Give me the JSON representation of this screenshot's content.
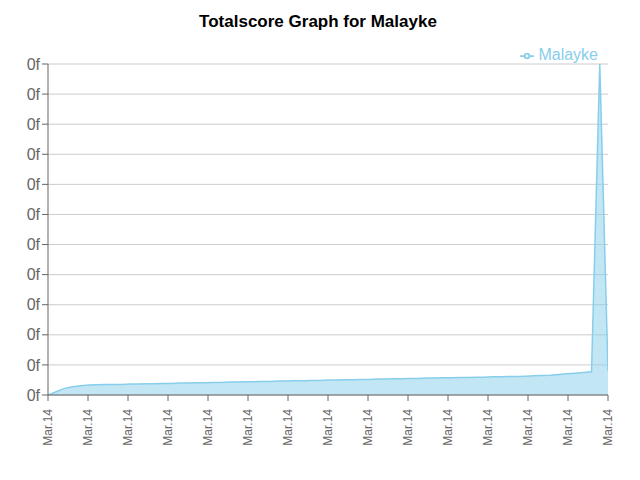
{
  "chart_data": {
    "type": "area",
    "title": "Totalscore Graph for Malayke",
    "x": [
      0,
      1,
      2,
      3,
      4,
      5,
      6,
      7,
      8,
      9,
      10,
      11,
      12,
      13,
      14,
      15,
      16,
      17,
      18,
      19,
      20,
      21,
      22,
      23,
      24,
      25,
      26,
      27,
      28,
      29,
      30,
      31,
      32,
      33,
      34,
      35,
      36,
      37,
      38,
      39,
      40,
      41,
      42,
      43,
      44,
      45,
      46,
      47,
      48,
      49,
      50,
      51,
      52,
      53,
      54,
      55,
      56,
      57,
      58,
      59,
      60,
      61,
      62,
      63,
      64,
      65,
      66,
      67,
      68
    ],
    "series": [
      {
        "name": "Malayke",
        "color": "#87CEEB",
        "values": [
          0.0,
          0.01,
          0.02,
          0.025,
          0.028,
          0.03,
          0.031,
          0.032,
          0.032,
          0.032,
          0.033,
          0.033,
          0.034,
          0.034,
          0.035,
          0.035,
          0.036,
          0.036,
          0.037,
          0.037,
          0.038,
          0.038,
          0.039,
          0.039,
          0.04,
          0.04,
          0.041,
          0.041,
          0.042,
          0.042,
          0.043,
          0.043,
          0.044,
          0.044,
          0.045,
          0.045,
          0.046,
          0.046,
          0.047,
          0.047,
          0.048,
          0.048,
          0.049,
          0.049,
          0.05,
          0.05,
          0.051,
          0.051,
          0.052,
          0.052,
          0.053,
          0.053,
          0.054,
          0.054,
          0.055,
          0.055,
          0.056,
          0.056,
          0.057,
          0.058,
          0.059,
          0.06,
          0.062,
          0.064,
          0.066,
          0.068,
          0.07,
          1.0,
          0.072
        ]
      }
    ],
    "xlim": [
      0,
      68
    ],
    "xticks": [
      {
        "value": 0,
        "label": "Mar.14"
      },
      {
        "value": 4.857142857142857,
        "label": "Mar.14"
      },
      {
        "value": 9.714285714285714,
        "label": "Mar.14"
      },
      {
        "value": 14.571428571428571,
        "label": "Mar.14"
      },
      {
        "value": 19.428571428571427,
        "label": "Mar.14"
      },
      {
        "value": 24.285714285714285,
        "label": "Mar.14"
      },
      {
        "value": 29.142857142857142,
        "label": "Mar.14"
      },
      {
        "value": 34.0,
        "label": "Mar.14"
      },
      {
        "value": 38.857142857142854,
        "label": "Mar.14"
      },
      {
        "value": 43.71428571428571,
        "label": "Mar.14"
      },
      {
        "value": 48.57142857142857,
        "label": "Mar.14"
      },
      {
        "value": 53.42857142857143,
        "label": "Mar.14"
      },
      {
        "value": 58.285714285714285,
        "label": "Mar.14"
      },
      {
        "value": 63.142857142857146,
        "label": "Mar.14"
      },
      {
        "value": 68.0,
        "label": "Mar.14"
      }
    ],
    "ylim": [
      0,
      1.0
    ],
    "yticks": [
      {
        "value": 0,
        "label": "0f"
      },
      {
        "value": 0.09090909090909091,
        "label": "0f"
      },
      {
        "value": 0.18181818181818182,
        "label": "0f"
      },
      {
        "value": 0.2727272727272727,
        "label": "0f"
      },
      {
        "value": 0.36363636363636365,
        "label": "0f"
      },
      {
        "value": 0.45454545454545453,
        "label": "0f"
      },
      {
        "value": 0.5454545454545454,
        "label": "0f"
      },
      {
        "value": 0.6363636363636364,
        "label": "0f"
      },
      {
        "value": 0.7272727272727273,
        "label": "0f"
      },
      {
        "value": 0.8181818181818182,
        "label": "0f"
      },
      {
        "value": 0.9090909090909091,
        "label": "0f"
      },
      {
        "value": 1.0,
        "label": "0f"
      }
    ],
    "grid": true,
    "legend": "upper right"
  }
}
